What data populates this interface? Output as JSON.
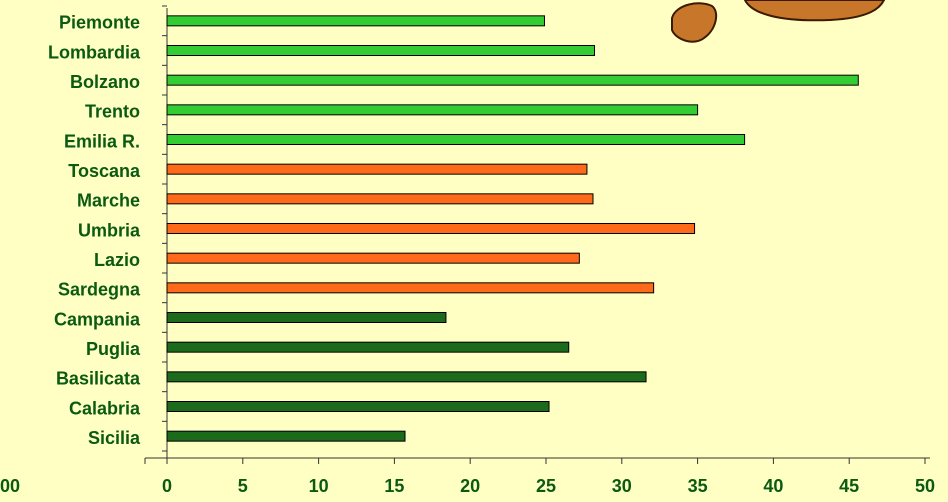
{
  "chart_data": {
    "type": "hbar",
    "categories": [
      "Piemonte",
      "Lombardia",
      "Bolzano",
      "Trento",
      "Emilia R.",
      "Toscana",
      "Marche",
      "Umbria",
      "Lazio",
      "Sardegna",
      "Campania",
      "Puglia",
      "Basilicata",
      "Calabria",
      "Sicilia"
    ],
    "values": [
      24.9,
      28.2,
      45.6,
      35.0,
      38.1,
      27.7,
      28.1,
      34.8,
      27.2,
      32.1,
      18.4,
      26.5,
      31.6,
      25.2,
      15.7
    ],
    "colors": [
      "#33cc33",
      "#33cc33",
      "#33cc33",
      "#33cc33",
      "#33cc33",
      "#ff6a1a",
      "#ff6a1a",
      "#ff6a1a",
      "#ff6a1a",
      "#ff6a1a",
      "#1c6b1c",
      "#1c6b1c",
      "#1c6b1c",
      "#1c6b1c",
      "#1c6b1c"
    ],
    "xlim": [
      0,
      50
    ],
    "xticks": [
      0,
      5,
      10,
      15,
      20,
      25,
      30,
      35,
      40,
      45,
      50
    ],
    "cropped_label": "00"
  }
}
